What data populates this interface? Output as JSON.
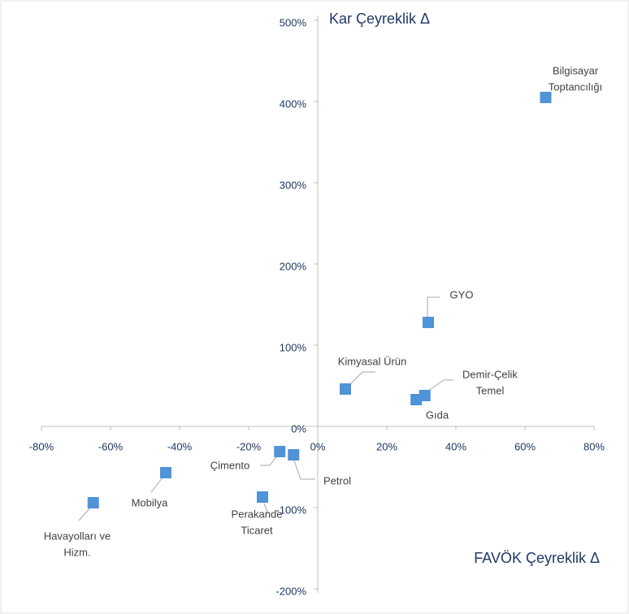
{
  "chart_data": {
    "type": "scatter",
    "x_title": "FAVÖK Çeyreklik Δ",
    "y_title": "Kar Çeyreklik Δ",
    "color": "#4f93d8",
    "xlim": [
      -80,
      80
    ],
    "xticks": [
      {
        "value": -80,
        "label": "-80%"
      },
      {
        "value": -60,
        "label": "-60%"
      },
      {
        "value": -40,
        "label": "-40%"
      },
      {
        "value": -20,
        "label": "-20%"
      },
      {
        "value": 0,
        "label": "0%"
      },
      {
        "value": 20,
        "label": "20%"
      },
      {
        "value": 40,
        "label": "40%"
      },
      {
        "value": 60,
        "label": "60%"
      },
      {
        "value": 80,
        "label": "80%"
      }
    ],
    "ylim": [
      -200,
      500
    ],
    "yticks": [
      {
        "value": -200,
        "label": "-200%"
      },
      {
        "value": -100,
        "label": "-100%"
      },
      {
        "value": 0,
        "label": "0%"
      },
      {
        "value": 100,
        "label": "100%"
      },
      {
        "value": 200,
        "label": "200%"
      },
      {
        "value": 300,
        "label": "300%"
      },
      {
        "value": 400,
        "label": "400%"
      },
      {
        "value": 500,
        "label": "500%"
      }
    ],
    "points": [
      {
        "label": [
          "Bilgisayar",
          "Toptancılığı"
        ],
        "x": 66,
        "y": 405
      },
      {
        "label": [
          "GYO"
        ],
        "x": 32,
        "y": 128
      },
      {
        "label": [
          "Kimyasal Ürün"
        ],
        "x": 8,
        "y": 46
      },
      {
        "label": [
          "Demir-Çelik",
          "Temel"
        ],
        "x": 31,
        "y": 38
      },
      {
        "label": [
          "Gıda"
        ],
        "x": 28.5,
        "y": 33
      },
      {
        "label": [
          "Çimento"
        ],
        "x": -11,
        "y": -31
      },
      {
        "label": [
          "Petrol"
        ],
        "x": -7,
        "y": -35
      },
      {
        "label": [
          "Perakande",
          "Ticaret"
        ],
        "x": -16,
        "y": -87
      },
      {
        "label": [
          "Mobilya"
        ],
        "x": -44,
        "y": -57
      },
      {
        "label": [
          "Havayolları ve",
          "Hizm."
        ],
        "x": -65,
        "y": -94
      }
    ]
  }
}
